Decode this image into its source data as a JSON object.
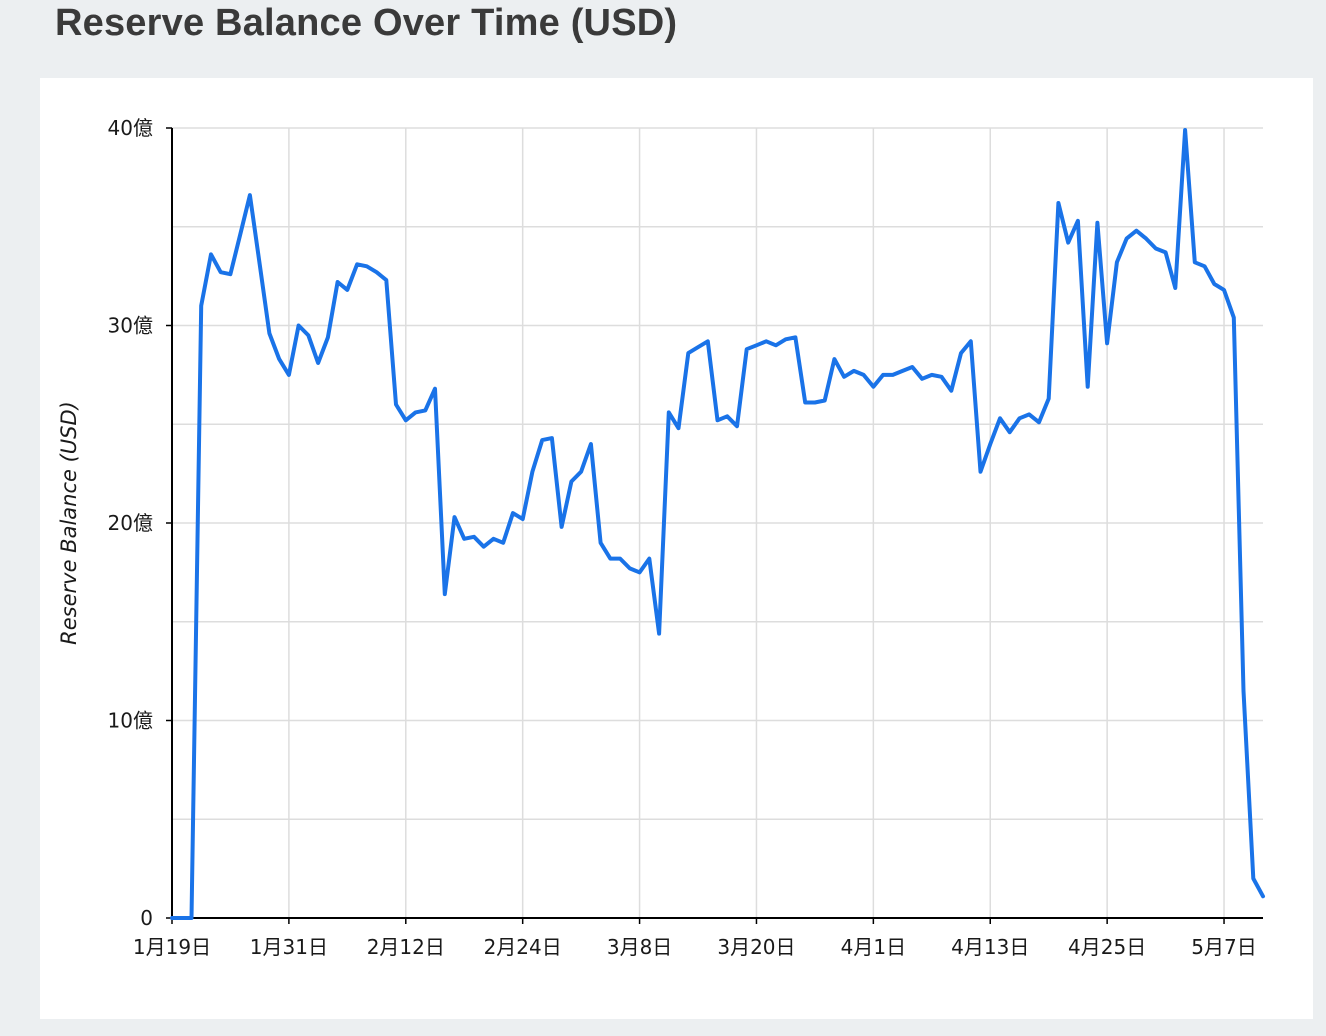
{
  "page": {
    "title": "Reserve Balance Over Time (USD)"
  },
  "colors": {
    "line": "#1a73e8",
    "grid": "#dddddd",
    "axis": "#000000",
    "background": "#eceff1",
    "card": "#ffffff"
  },
  "chart_data": {
    "type": "line",
    "title": "Reserve Balance Over Time (USD)",
    "xlabel": "",
    "ylabel": "Reserve Balance (USD)",
    "ylim": [
      0,
      4000000000
    ],
    "xlim": [
      "1月19日",
      "5月11日"
    ],
    "grid": true,
    "legend": "none",
    "y_ticks": [
      {
        "value": 0,
        "label": "0"
      },
      {
        "value": 1000000000,
        "label": "10億"
      },
      {
        "value": 2000000000,
        "label": "20億"
      },
      {
        "value": 3000000000,
        "label": "30億"
      },
      {
        "value": 4000000000,
        "label": "40億"
      }
    ],
    "x_ticks": [
      {
        "day": 0,
        "label": "1月19日"
      },
      {
        "day": 12,
        "label": "1月31日"
      },
      {
        "day": 24,
        "label": "2月12日"
      },
      {
        "day": 36,
        "label": "2月24日"
      },
      {
        "day": 48,
        "label": "3月8日"
      },
      {
        "day": 60,
        "label": "3月20日"
      },
      {
        "day": 72,
        "label": "4月1日"
      },
      {
        "day": 84,
        "label": "4月13日"
      },
      {
        "day": 96,
        "label": "4月25日"
      },
      {
        "day": 108,
        "label": "5月7日"
      }
    ],
    "series": [
      {
        "values": [
          [
            0,
            0
          ],
          [
            1,
            0
          ],
          [
            2,
            0
          ],
          [
            3,
            3100000000
          ],
          [
            4,
            3360000000
          ],
          [
            5,
            3270000000
          ],
          [
            6,
            3260000000
          ],
          [
            7,
            3460000000
          ],
          [
            8,
            3660000000
          ],
          [
            9,
            3310000000
          ],
          [
            10,
            2960000000
          ],
          [
            11,
            2830000000
          ],
          [
            12,
            2750000000
          ],
          [
            13,
            3000000000
          ],
          [
            14,
            2950000000
          ],
          [
            15,
            2810000000
          ],
          [
            16,
            2940000000
          ],
          [
            17,
            3220000000
          ],
          [
            18,
            3180000000
          ],
          [
            19,
            3310000000
          ],
          [
            20,
            3300000000
          ],
          [
            21,
            3270000000
          ],
          [
            22,
            3230000000
          ],
          [
            23,
            2600000000
          ],
          [
            24,
            2520000000
          ],
          [
            25,
            2560000000
          ],
          [
            26,
            2570000000
          ],
          [
            27,
            2680000000
          ],
          [
            28,
            1640000000
          ],
          [
            29,
            2030000000
          ],
          [
            30,
            1920000000
          ],
          [
            31,
            1930000000
          ],
          [
            32,
            1880000000
          ],
          [
            33,
            1920000000
          ],
          [
            34,
            1900000000
          ],
          [
            35,
            2050000000
          ],
          [
            36,
            2020000000
          ],
          [
            37,
            2260000000
          ],
          [
            38,
            2420000000
          ],
          [
            39,
            2430000000
          ],
          [
            40,
            1980000000
          ],
          [
            41,
            2210000000
          ],
          [
            42,
            2260000000
          ],
          [
            43,
            2400000000
          ],
          [
            44,
            1900000000
          ],
          [
            45,
            1820000000
          ],
          [
            46,
            1820000000
          ],
          [
            47,
            1770000000
          ],
          [
            48,
            1750000000
          ],
          [
            49,
            1820000000
          ],
          [
            50,
            1440000000
          ],
          [
            51,
            2560000000
          ],
          [
            52,
            2480000000
          ],
          [
            53,
            2860000000
          ],
          [
            54,
            2890000000
          ],
          [
            55,
            2920000000
          ],
          [
            56,
            2520000000
          ],
          [
            57,
            2540000000
          ],
          [
            58,
            2490000000
          ],
          [
            59,
            2880000000
          ],
          [
            60,
            2900000000
          ],
          [
            61,
            2920000000
          ],
          [
            62,
            2900000000
          ],
          [
            63,
            2930000000
          ],
          [
            64,
            2940000000
          ],
          [
            65,
            2610000000
          ],
          [
            66,
            2610000000
          ],
          [
            67,
            2620000000
          ],
          [
            68,
            2830000000
          ],
          [
            69,
            2740000000
          ],
          [
            70,
            2770000000
          ],
          [
            71,
            2750000000
          ],
          [
            72,
            2690000000
          ],
          [
            73,
            2750000000
          ],
          [
            74,
            2750000000
          ],
          [
            75,
            2770000000
          ],
          [
            76,
            2790000000
          ],
          [
            77,
            2730000000
          ],
          [
            78,
            2750000000
          ],
          [
            79,
            2740000000
          ],
          [
            80,
            2670000000
          ],
          [
            81,
            2860000000
          ],
          [
            82,
            2920000000
          ],
          [
            83,
            2260000000
          ],
          [
            84,
            2400000000
          ],
          [
            85,
            2530000000
          ],
          [
            86,
            2460000000
          ],
          [
            87,
            2530000000
          ],
          [
            88,
            2550000000
          ],
          [
            89,
            2510000000
          ],
          [
            90,
            2630000000
          ],
          [
            91,
            3620000000
          ],
          [
            92,
            3420000000
          ],
          [
            93,
            3530000000
          ],
          [
            94,
            2690000000
          ],
          [
            95,
            3520000000
          ],
          [
            96,
            2910000000
          ],
          [
            97,
            3320000000
          ],
          [
            98,
            3440000000
          ],
          [
            99,
            3480000000
          ],
          [
            100,
            3440000000
          ],
          [
            101,
            3390000000
          ],
          [
            102,
            3370000000
          ],
          [
            103,
            3190000000
          ],
          [
            104,
            3990000000
          ],
          [
            105,
            3320000000
          ],
          [
            106,
            3300000000
          ],
          [
            107,
            3210000000
          ],
          [
            108,
            3180000000
          ],
          [
            109,
            3040000000
          ],
          [
            110,
            1150000000
          ],
          [
            111,
            200000000
          ],
          [
            112,
            110000000
          ]
        ]
      }
    ]
  }
}
